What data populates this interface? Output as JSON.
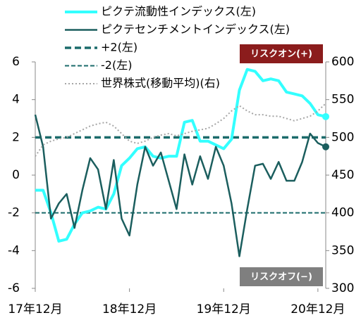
{
  "chart_data": {
    "type": "line",
    "categories": [
      "17年12月",
      null,
      null,
      null,
      null,
      null,
      null,
      null,
      null,
      null,
      null,
      null,
      "18年12月",
      null,
      null,
      null,
      null,
      null,
      null,
      null,
      null,
      null,
      null,
      null,
      "19年12月",
      null,
      null,
      null,
      null,
      null,
      null,
      null,
      null,
      null,
      null,
      null,
      "20年12月",
      null
    ],
    "series": [
      {
        "name": "ピクテ流動性インデックス(左)",
        "color": "#33ffff",
        "width": 4,
        "axis": "y",
        "values": [
          -0.8,
          -0.8,
          -2.0,
          -3.5,
          -3.4,
          -2.6,
          -2.0,
          -1.9,
          -1.7,
          -1.8,
          -1.0,
          0.5,
          0.9,
          1.4,
          1.5,
          1.0,
          0.9,
          1.0,
          1.0,
          2.8,
          2.9,
          1.8,
          1.8,
          1.6,
          1.4,
          1.9,
          4.5,
          5.6,
          5.5,
          5.0,
          5.1,
          5.0,
          4.4,
          4.3,
          4.2,
          3.8,
          3.2,
          3.1
        ]
      },
      {
        "name": "ピクテセンチメントインデックス(左)",
        "color": "#1b5e5e",
        "width": 2.5,
        "axis": "y",
        "values": [
          3.2,
          1.5,
          -2.3,
          -1.5,
          -1.0,
          -2.8,
          -0.8,
          0.9,
          0.3,
          -1.8,
          0.8,
          -2.3,
          -3.2,
          -0.5,
          1.5,
          0.5,
          1.2,
          -0.3,
          -1.8,
          1.1,
          -0.5,
          1.0,
          -0.2,
          1.5,
          0.5,
          -1.5,
          -4.3,
          -1.8,
          0.5,
          0.6,
          -0.2,
          0.7,
          -0.3,
          -0.3,
          0.7,
          2.2,
          1.7,
          1.5
        ]
      },
      {
        "name": "世界株式(移動平均)(右)",
        "color": "#a6a6a6",
        "width": 2,
        "dash": "2 3",
        "axis": "y2",
        "values": [
          475,
          490,
          495,
          498,
          500,
          505,
          510,
          515,
          518,
          520,
          515,
          505,
          495,
          492,
          495,
          500,
          503,
          505,
          502,
          505,
          508,
          510,
          512,
          518,
          525,
          535,
          542,
          535,
          530,
          530,
          528,
          528,
          525,
          522,
          525,
          528,
          535,
          545
        ]
      }
    ],
    "ref_lines": [
      {
        "name": "+2(左)",
        "value": 2,
        "color": "#1b6b6b",
        "width": 3.5,
        "dash": "9 5"
      },
      {
        "name": "-2(左)",
        "value": -2,
        "color": "#1b6b6b",
        "width": 2,
        "dash": "6 3"
      }
    ],
    "legend_order": [
      0,
      1,
      "r0",
      "r1",
      2
    ],
    "ylim": [
      -6,
      6
    ],
    "yticks": [
      -6,
      -4,
      -2,
      0,
      2,
      4,
      6
    ],
    "negative_tick_color": "#c00000",
    "y2lim": [
      300,
      600
    ],
    "y2ticks": [
      300,
      350,
      400,
      450,
      500,
      550,
      600
    ],
    "annotations": [
      {
        "text": "リスクオン(+)",
        "fill": "#8b1c1c",
        "position": "top"
      },
      {
        "text": "リスクオフ(−)",
        "fill": "#7f7f7f",
        "position": "bottom"
      }
    ]
  }
}
